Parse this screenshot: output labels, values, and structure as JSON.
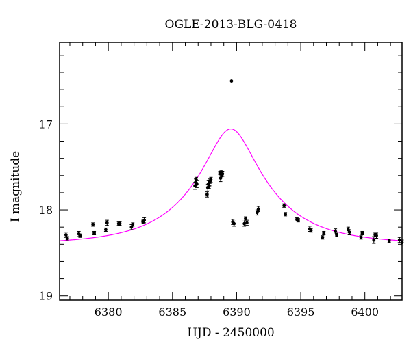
{
  "chart_data": {
    "type": "scatter",
    "title": "OGLE-2013-BLG-0418",
    "xlabel": "HJD - 2450000",
    "ylabel": "I magnitude",
    "xlim": [
      6376.2,
      6402.9
    ],
    "ylim": [
      19.05,
      16.05
    ],
    "y_inverted": true,
    "grid": false,
    "x_ticks": [
      6380,
      6385,
      6390,
      6395,
      6400
    ],
    "x_tick_labels": [
      "6380",
      "6385",
      "6390",
      "6395",
      "6400"
    ],
    "y_ticks": [
      17,
      18,
      19
    ],
    "y_tick_labels": [
      "17",
      "18",
      "19"
    ],
    "colors": {
      "points": "#000000",
      "model": "#ff00ff",
      "frame": "#000000"
    },
    "series": [
      {
        "kind": "points",
        "x": [
          6376.7,
          6376.8,
          6377.7,
          6377.8,
          6378.8,
          6378.9,
          6379.8,
          6379.9,
          6380.8,
          6380.9,
          6381.8,
          6381.9,
          6382.7,
          6382.8,
          6386.75,
          6386.8,
          6386.85,
          6386.9,
          6387.7,
          6387.75,
          6387.8,
          6387.85,
          6387.9,
          6387.95,
          6388.0,
          6388.7,
          6388.75,
          6388.8,
          6388.85,
          6388.9,
          6389.6,
          6389.7,
          6389.8,
          6390.6,
          6390.7,
          6390.8,
          6391.6,
          6391.7,
          6393.7,
          6393.8,
          6394.7,
          6394.8,
          6395.7,
          6395.8,
          6396.7,
          6396.8,
          6397.7,
          6397.8,
          6398.7,
          6398.8,
          6399.7,
          6399.8,
          6400.7,
          6400.8,
          6400.9,
          6401.9,
          6402.7,
          6402.9
        ],
        "y": [
          18.29,
          18.33,
          18.28,
          18.3,
          18.17,
          18.27,
          18.23,
          18.15,
          18.16,
          18.16,
          18.2,
          18.17,
          18.14,
          18.12,
          17.72,
          17.68,
          17.65,
          17.7,
          17.82,
          17.74,
          17.7,
          17.72,
          17.68,
          17.66,
          17.65,
          17.57,
          17.63,
          17.57,
          17.6,
          17.58,
          16.5,
          18.14,
          18.16,
          18.16,
          18.1,
          18.15,
          18.03,
          17.99,
          17.95,
          18.05,
          18.11,
          18.12,
          18.22,
          18.24,
          18.32,
          18.27,
          18.25,
          18.29,
          18.23,
          18.26,
          18.32,
          18.27,
          18.35,
          18.29,
          18.3,
          18.36,
          18.35,
          18.38
        ],
        "err": [
          0.03,
          0.02,
          0.03,
          0.02,
          0.02,
          0.02,
          0.02,
          0.03,
          0.02,
          0.02,
          0.03,
          0.02,
          0.02,
          0.03,
          0.04,
          0.04,
          0.03,
          0.04,
          0.03,
          0.04,
          0.04,
          0.03,
          0.04,
          0.03,
          0.03,
          0.02,
          0.04,
          0.03,
          0.03,
          0.03,
          0.0,
          0.03,
          0.03,
          0.03,
          0.02,
          0.03,
          0.03,
          0.03,
          0.02,
          0.02,
          0.02,
          0.02,
          0.03,
          0.02,
          0.02,
          0.02,
          0.03,
          0.02,
          0.03,
          0.03,
          0.02,
          0.02,
          0.04,
          0.02,
          0.03,
          0.02,
          0.03,
          0.03
        ]
      },
      {
        "kind": "model-curve",
        "t0": 6389.55,
        "u0": 0.3,
        "tE": 5.8,
        "base_mag": 18.4
      }
    ]
  }
}
